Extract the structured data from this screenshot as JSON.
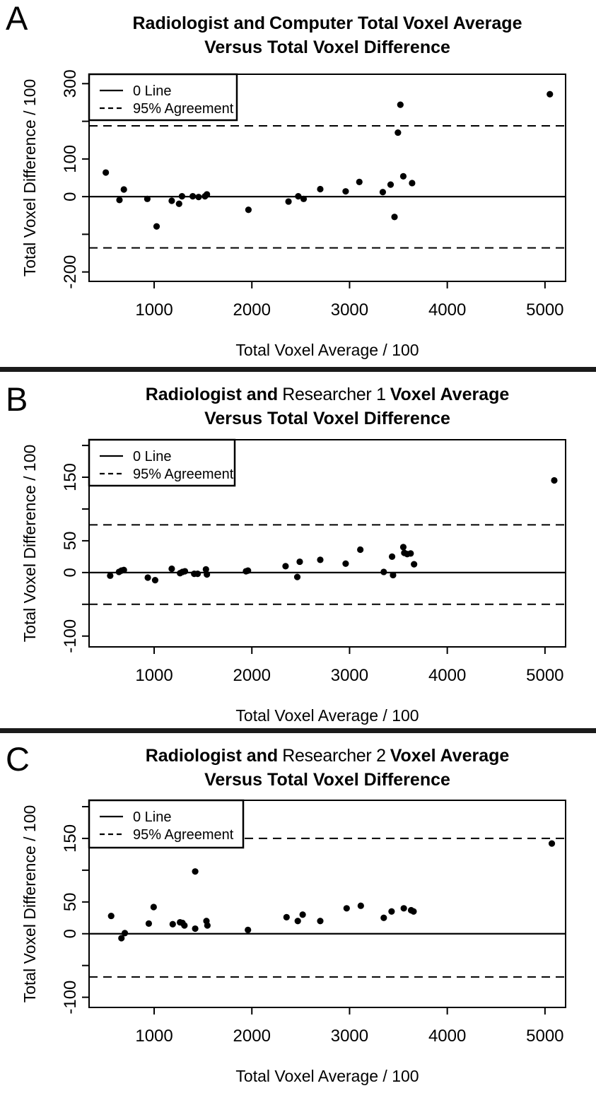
{
  "chart_data": [
    {
      "type": "scatter",
      "panel": "A",
      "title_prefix": "Radiologist and",
      "title_mid": "Computer Total",
      "title_mid_alt": false,
      "title_suffix": "Voxel Average",
      "title_line2": "Versus Total Voxel Difference",
      "xlabel": "Total Voxel Average / 100",
      "ylabel": "Total Voxel Difference / 100",
      "xlim": [
        334,
        5211
      ],
      "ylim": [
        -225,
        325
      ],
      "xticks": [
        1000,
        2000,
        3000,
        4000,
        5000
      ],
      "yticks": [
        {
          "v": 300,
          "label": "300"
        },
        {
          "v": 200,
          "label": ""
        },
        {
          "v": 100,
          "label": "100"
        },
        {
          "v": 0,
          "label": "0"
        },
        {
          "v": -100,
          "label": ""
        },
        {
          "v": -200,
          "label": "-200"
        }
      ],
      "zero_line": 0,
      "agreement_upper": 188,
      "agreement_lower": -136,
      "legend": [
        {
          "label": "0 Line",
          "style": "solid"
        },
        {
          "label": "95% Agreement",
          "style": "dashed"
        }
      ],
      "points": [
        [
          505,
          64
        ],
        [
          645,
          -9
        ],
        [
          690,
          19
        ],
        [
          930,
          -6
        ],
        [
          1025,
          -79
        ],
        [
          1180,
          -11
        ],
        [
          1255,
          -19
        ],
        [
          1285,
          1
        ],
        [
          1395,
          1
        ],
        [
          1455,
          -1
        ],
        [
          1520,
          1
        ],
        [
          1540,
          6
        ],
        [
          1965,
          -35
        ],
        [
          2375,
          -13
        ],
        [
          2475,
          1
        ],
        [
          2530,
          -6
        ],
        [
          2700,
          20
        ],
        [
          2960,
          14
        ],
        [
          3100,
          39
        ],
        [
          3340,
          12
        ],
        [
          3420,
          32
        ],
        [
          3460,
          -54
        ],
        [
          3495,
          170
        ],
        [
          3520,
          244
        ],
        [
          3550,
          54
        ],
        [
          3640,
          36
        ],
        [
          5050,
          272
        ]
      ]
    },
    {
      "type": "scatter",
      "panel": "B",
      "title_prefix": "Radiologist and",
      "title_mid": "Researcher 1",
      "title_mid_alt": true,
      "title_suffix": "Voxel Average",
      "title_line2": "Versus Total Voxel Difference",
      "xlabel": "Total Voxel Average / 100",
      "ylabel": "Total Voxel Difference / 100",
      "xlim": [
        334,
        5211
      ],
      "ylim": [
        -117,
        209
      ],
      "xticks": [
        1000,
        2000,
        3000,
        4000,
        5000
      ],
      "yticks": [
        {
          "v": 200,
          "label": ""
        },
        {
          "v": 150,
          "label": "150"
        },
        {
          "v": 100,
          "label": ""
        },
        {
          "v": 50,
          "label": "50"
        },
        {
          "v": 0,
          "label": "0"
        },
        {
          "v": -50,
          "label": ""
        },
        {
          "v": -100,
          "label": "-100"
        }
      ],
      "zero_line": 0,
      "agreement_upper": 75,
      "agreement_lower": -50,
      "legend": [
        {
          "label": "0 Line",
          "style": "solid"
        },
        {
          "label": "95% Agreement",
          "style": "dashed"
        }
      ],
      "points": [
        [
          550,
          -5
        ],
        [
          640,
          1
        ],
        [
          665,
          3
        ],
        [
          690,
          4
        ],
        [
          935,
          -8
        ],
        [
          1010,
          -12
        ],
        [
          1180,
          6
        ],
        [
          1265,
          -1
        ],
        [
          1290,
          1
        ],
        [
          1315,
          2
        ],
        [
          1410,
          -2
        ],
        [
          1445,
          -2
        ],
        [
          1530,
          5
        ],
        [
          1540,
          -3
        ],
        [
          1940,
          2
        ],
        [
          1960,
          3
        ],
        [
          2345,
          10
        ],
        [
          2465,
          -7
        ],
        [
          2490,
          17
        ],
        [
          2700,
          20
        ],
        [
          2960,
          14
        ],
        [
          3110,
          36
        ],
        [
          3350,
          1
        ],
        [
          3435,
          25
        ],
        [
          3445,
          -4
        ],
        [
          3550,
          40
        ],
        [
          3560,
          31
        ],
        [
          3590,
          29
        ],
        [
          3625,
          30
        ],
        [
          3660,
          13
        ],
        [
          5095,
          145
        ]
      ]
    },
    {
      "type": "scatter",
      "panel": "C",
      "title_prefix": "Radiologist and",
      "title_mid": "Researcher 2",
      "title_mid_alt": true,
      "title_suffix": "Voxel Average",
      "title_line2": "Versus Total Voxel Difference",
      "xlabel": "Total Voxel Average / 100",
      "ylabel": "Total Voxel Difference / 100",
      "xlim": [
        334,
        5211
      ],
      "ylim": [
        -116,
        210
      ],
      "xticks": [
        1000,
        2000,
        3000,
        4000,
        5000
      ],
      "yticks": [
        {
          "v": 200,
          "label": ""
        },
        {
          "v": 150,
          "label": "150"
        },
        {
          "v": 100,
          "label": ""
        },
        {
          "v": 50,
          "label": "50"
        },
        {
          "v": 0,
          "label": "0"
        },
        {
          "v": -50,
          "label": ""
        },
        {
          "v": -100,
          "label": "-100"
        }
      ],
      "zero_line": 0,
      "agreement_upper": 150,
      "agreement_lower": -68,
      "legend": [
        {
          "label": "0 Line",
          "style": "solid"
        },
        {
          "label": "95% Agreement",
          "style": "dashed"
        }
      ],
      "points": [
        [
          560,
          28
        ],
        [
          665,
          -7
        ],
        [
          700,
          1
        ],
        [
          945,
          16
        ],
        [
          995,
          42
        ],
        [
          1190,
          15
        ],
        [
          1265,
          18
        ],
        [
          1290,
          17
        ],
        [
          1310,
          13
        ],
        [
          1420,
          98
        ],
        [
          1420,
          8
        ],
        [
          1535,
          20
        ],
        [
          1545,
          13
        ],
        [
          1960,
          6
        ],
        [
          2355,
          26
        ],
        [
          2470,
          20
        ],
        [
          2520,
          30
        ],
        [
          2700,
          20
        ],
        [
          2970,
          40
        ],
        [
          3115,
          44
        ],
        [
          3350,
          25
        ],
        [
          3430,
          35
        ],
        [
          3555,
          40
        ],
        [
          3630,
          37
        ],
        [
          3655,
          35
        ],
        [
          5070,
          142
        ]
      ]
    }
  ]
}
